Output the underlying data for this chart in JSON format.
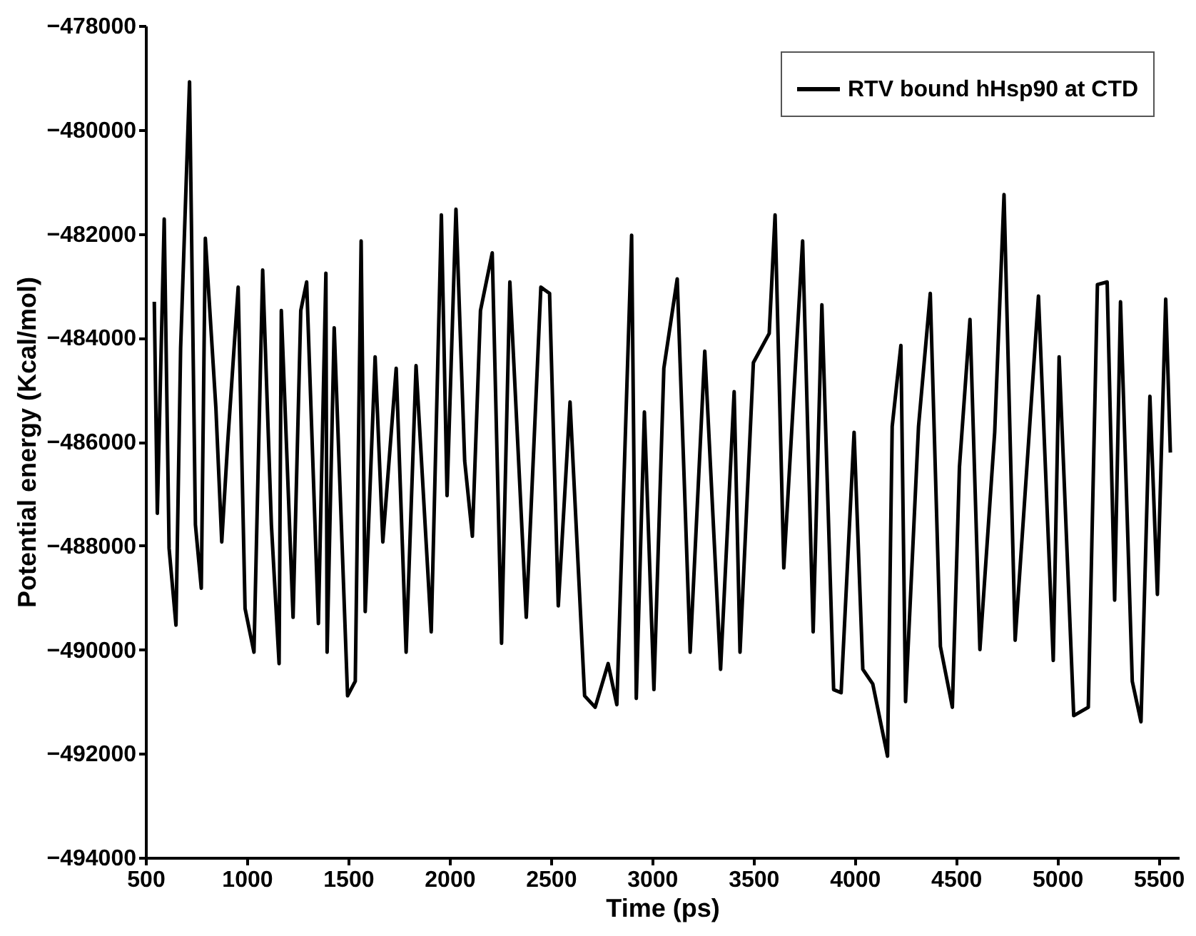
{
  "chart_data": {
    "type": "line",
    "xlabel": "Time (ps)",
    "ylabel": "Potential energy (Kcal/mol)",
    "xlim": [
      500,
      5600
    ],
    "xticks": [
      500,
      1000,
      1500,
      2000,
      2500,
      3000,
      3500,
      4000,
      4500,
      5000,
      5500
    ],
    "ylim": [
      -494000,
      -478000
    ],
    "yticks": [
      -494000,
      -492000,
      -490000,
      -488000,
      -486000,
      -484000,
      -482000,
      -480000,
      -478000
    ],
    "grid": false,
    "legend": "top right",
    "line_style": "solid",
    "marker": "none",
    "x": [
      543,
      558,
      592,
      616,
      650,
      673,
      717,
      746,
      775,
      795,
      847,
      876,
      905,
      957,
      991,
      1035,
      1078,
      1121,
      1159,
      1170,
      1228,
      1266,
      1295,
      1353,
      1390,
      1396,
      1431,
      1497,
      1535,
      1564,
      1584,
      1633,
      1671,
      1737,
      1786,
      1835,
      1910,
      1960,
      1988,
      2032,
      2075,
      2113,
      2153,
      2211,
      2257,
      2298,
      2379,
      2451,
      2494,
      2537,
      2595,
      2667,
      2719,
      2783,
      2826,
      2864,
      2899,
      2922,
      2962,
      3009,
      3058,
      3124,
      3188,
      3260,
      3338,
      3405,
      3434,
      3500,
      3578,
      3607,
      3650,
      3743,
      3795,
      3838,
      3896,
      3933,
      3997,
      4040,
      4089,
      4162,
      4185,
      4228,
      4251,
      4315,
      4373,
      4423,
      4482,
      4517,
      4569,
      4618,
      4691,
      4737,
      4792,
      4907,
      4980,
      5009,
      5081,
      5153,
      5198,
      5246,
      5283,
      5312,
      5370,
      5413,
      5457,
      5494,
      5535,
      5558
    ],
    "series": [
      {
        "name": "RTV bound hHsp90 at CTD",
        "color": "#000000",
        "values": [
          -483310,
          -487380,
          -481720,
          -488050,
          -489530,
          -484200,
          -479080,
          -487600,
          -488820,
          -482090,
          -485350,
          -487930,
          -486040,
          -483030,
          -489210,
          -490050,
          -482700,
          -487600,
          -490270,
          -483480,
          -489380,
          -483480,
          -482930,
          -489500,
          -482760,
          -490050,
          -483810,
          -490890,
          -490610,
          -482140,
          -489270,
          -484370,
          -487930,
          -484590,
          -490050,
          -484540,
          -489660,
          -481640,
          -487040,
          -481530,
          -486370,
          -487820,
          -483480,
          -482370,
          -489880,
          -482930,
          -489380,
          -483030,
          -483150,
          -489160,
          -485240,
          -490890,
          -491110,
          -490270,
          -491060,
          -486370,
          -482030,
          -490940,
          -485430,
          -490770,
          -484590,
          -482870,
          -490050,
          -484260,
          -490380,
          -485040,
          -490050,
          -484480,
          -483920,
          -481640,
          -488430,
          -482140,
          -489660,
          -483370,
          -490770,
          -490830,
          -485820,
          -490380,
          -490660,
          -492050,
          -485710,
          -484150,
          -491000,
          -485710,
          -483150,
          -489940,
          -491110,
          -486490,
          -483650,
          -490000,
          -485820,
          -481250,
          -489820,
          -483200,
          -490210,
          -484370,
          -491270,
          -491110,
          -482980,
          -482930,
          -489050,
          -483310,
          -490610,
          -491390,
          -485130,
          -488940,
          -483260,
          -486210
        ]
      }
    ]
  }
}
